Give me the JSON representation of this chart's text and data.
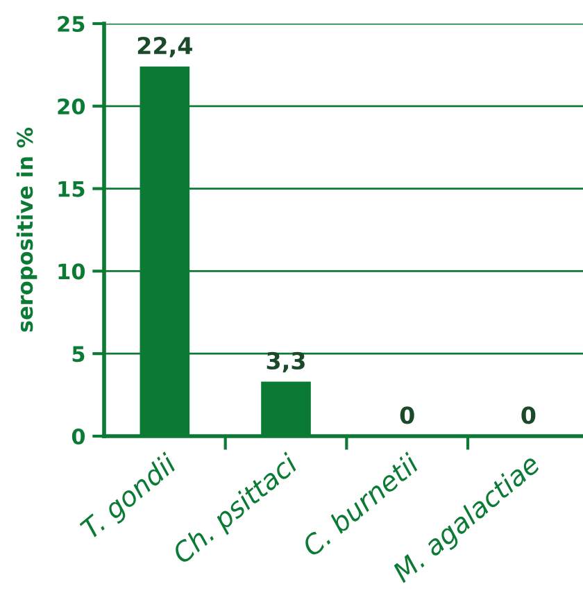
{
  "chart_data": {
    "type": "bar",
    "ylabel": "seropositive in %",
    "categories": [
      "T. gondii",
      "Ch. psittaci",
      "C. burnetii",
      "M. agalactiae"
    ],
    "values": [
      22.4,
      3.3,
      0,
      0
    ],
    "value_labels": [
      "22,4",
      "3,3",
      "0",
      "0"
    ],
    "color": "#0b7a35",
    "ylim": [
      0,
      25
    ],
    "yticks": [
      0,
      5,
      10,
      15,
      20,
      25
    ],
    "grid": "y"
  }
}
